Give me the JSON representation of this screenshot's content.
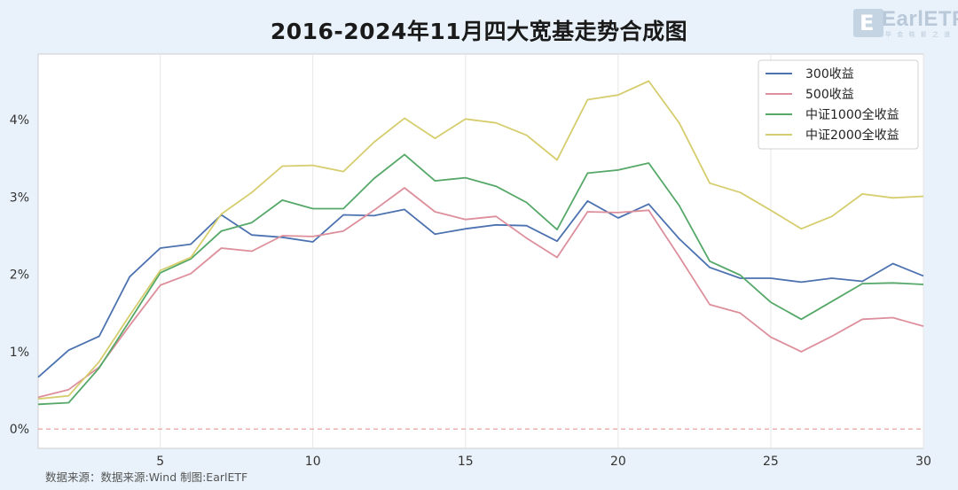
{
  "title": "2016-2024年11月四大宽基走势合成图",
  "source_text": "数据来源：数据来源:Wind 制图:EarlETF",
  "logo": {
    "name": "EarlETF",
    "tagline": "毕 金 晓 晷 之 道"
  },
  "chart_data": {
    "type": "line",
    "x": [
      1,
      2,
      3,
      4,
      5,
      6,
      7,
      8,
      9,
      10,
      11,
      12,
      13,
      14,
      15,
      16,
      17,
      18,
      19,
      20,
      21,
      22,
      23,
      24,
      25,
      26,
      27,
      28,
      29,
      30
    ],
    "xlim": [
      1,
      30
    ],
    "xticks": [
      5,
      10,
      15,
      20,
      25,
      30
    ],
    "ylim": [
      -0.25,
      4.85
    ],
    "yticks": [
      0,
      1,
      2,
      3,
      4
    ],
    "ytick_labels": [
      "0%",
      "1%",
      "2%",
      "3%",
      "4%"
    ],
    "grid": "vertical",
    "legend_position": "top-right",
    "reference_line": {
      "y": 0,
      "style": "dashed",
      "color": "#e89a95"
    },
    "series": [
      {
        "name": "300收益",
        "color": "#4c72b0",
        "values": [
          0.67,
          1.02,
          1.2,
          1.97,
          2.34,
          2.39,
          2.77,
          2.51,
          2.48,
          2.42,
          2.77,
          2.76,
          2.84,
          2.52,
          2.59,
          2.64,
          2.63,
          2.43,
          2.95,
          2.73,
          2.91,
          2.46,
          2.09,
          1.95,
          1.95,
          1.9,
          1.95,
          1.91,
          2.14,
          1.98
        ]
      },
      {
        "name": "500收益",
        "color": "#dd8f9b",
        "values": [
          0.41,
          0.51,
          0.8,
          1.34,
          1.86,
          2.01,
          2.34,
          2.3,
          2.5,
          2.49,
          2.56,
          2.83,
          3.12,
          2.81,
          2.71,
          2.75,
          2.47,
          2.22,
          2.81,
          2.8,
          2.83,
          2.23,
          1.61,
          1.5,
          1.19,
          1.0,
          1.2,
          1.42,
          1.44,
          1.33
        ]
      },
      {
        "name": "中证1000全收益",
        "color": "#55a868",
        "values": [
          0.32,
          0.34,
          0.79,
          1.4,
          2.02,
          2.2,
          2.56,
          2.67,
          2.96,
          2.85,
          2.85,
          3.24,
          3.55,
          3.21,
          3.25,
          3.14,
          2.93,
          2.58,
          3.31,
          3.35,
          3.44,
          2.89,
          2.17,
          1.99,
          1.64,
          1.42,
          1.65,
          1.88,
          1.89,
          1.87
        ]
      },
      {
        "name": "中证2000全收益",
        "color": "#d6cd6e",
        "values": [
          0.39,
          0.43,
          0.87,
          1.47,
          2.05,
          2.22,
          2.78,
          3.06,
          3.4,
          3.41,
          3.33,
          3.71,
          4.02,
          3.76,
          4.01,
          3.96,
          3.8,
          3.48,
          4.26,
          4.32,
          4.5,
          3.96,
          3.18,
          3.06,
          2.83,
          2.59,
          2.75,
          3.04,
          2.99,
          3.01
        ]
      }
    ]
  }
}
